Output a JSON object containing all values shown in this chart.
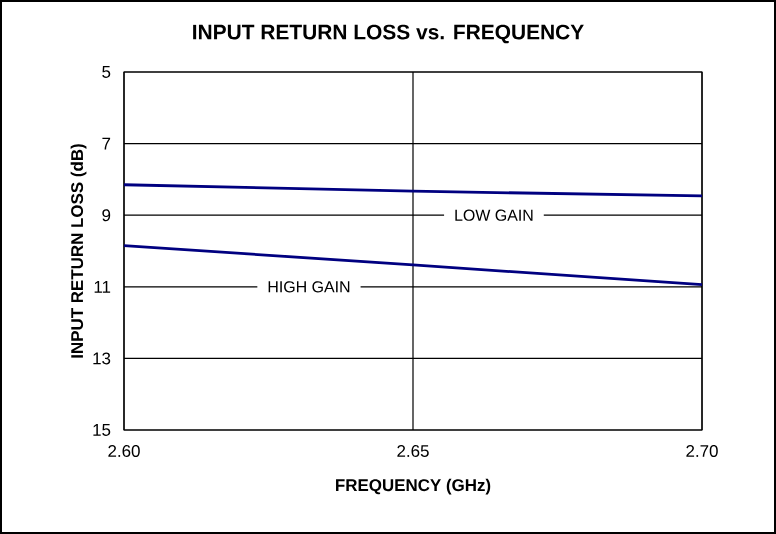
{
  "chart_data": {
    "type": "line",
    "title": "INPUT RETURN LOSS vs. FREQUENCY",
    "xlabel": "FREQUENCY (GHz)",
    "ylabel": "INPUT RETURN LOSS (dB)",
    "x": [
      2.6,
      2.65,
      2.7
    ],
    "series": [
      {
        "name": "LOW GAIN",
        "color": "#000080",
        "values": [
          8.15,
          8.33,
          8.46
        ]
      },
      {
        "name": "HIGH GAIN",
        "color": "#000080",
        "values": [
          9.85,
          10.39,
          10.94
        ]
      }
    ],
    "xlim": [
      2.6,
      2.7
    ],
    "xticks": [
      {
        "value": 2.6,
        "label": "2.60"
      },
      2.65,
      {
        "value": 2.7,
        "label": "2.70"
      }
    ],
    "ylim": [
      15,
      5
    ],
    "yticks": [
      5,
      7,
      9,
      11,
      13,
      15
    ],
    "grid": true,
    "marker": "none",
    "line_style": "solid",
    "legend": false
  }
}
